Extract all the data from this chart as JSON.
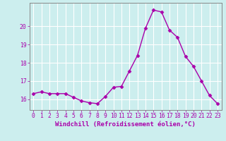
{
  "x": [
    0,
    1,
    2,
    3,
    4,
    5,
    6,
    7,
    8,
    9,
    10,
    11,
    12,
    13,
    14,
    15,
    16,
    17,
    18,
    19,
    20,
    21,
    22,
    23
  ],
  "y": [
    16.3,
    16.4,
    16.3,
    16.3,
    16.3,
    16.1,
    15.9,
    15.8,
    15.75,
    16.15,
    16.65,
    16.7,
    17.55,
    18.4,
    19.9,
    20.9,
    20.8,
    19.8,
    19.4,
    18.35,
    17.8,
    17.0,
    16.2,
    15.75
  ],
  "line_color": "#aa00aa",
  "marker": "D",
  "marker_size": 2.5,
  "background_color": "#cceeee",
  "grid_color": "#aadddd",
  "xlabel": "Windchill (Refroidissement éolien,°C)",
  "ylim": [
    15.4,
    21.3
  ],
  "xlim": [
    -0.5,
    23.5
  ],
  "yticks": [
    16,
    17,
    18,
    19,
    20
  ],
  "xticks": [
    0,
    1,
    2,
    3,
    4,
    5,
    6,
    7,
    8,
    9,
    10,
    11,
    12,
    13,
    14,
    15,
    16,
    17,
    18,
    19,
    20,
    21,
    22,
    23
  ],
  "label_color": "#aa00aa",
  "tick_color": "#aa00aa",
  "font_size_label": 6.5,
  "font_size_tick": 5.8,
  "spine_color": "#888888",
  "linewidth": 1.0
}
